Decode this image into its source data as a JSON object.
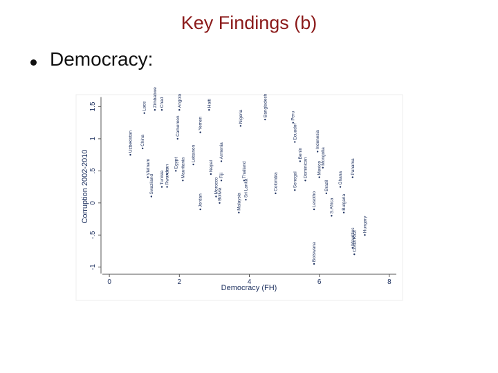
{
  "slide": {
    "title": "Key Findings (b)",
    "bullet": "Democracy:"
  },
  "chart_data": {
    "type": "scatter",
    "x_label": "Democracy (FH)",
    "y_label": "Corruption 2002-2010",
    "xlim": [
      -0.2,
      8.2
    ],
    "xticks": [
      0,
      2,
      4,
      6,
      8
    ],
    "ylim": [
      -1.1,
      1.65
    ],
    "yticks": [
      {
        "value": -1,
        "label": "-1"
      },
      {
        "value": -0.5,
        "label": "-.5"
      },
      0,
      {
        "value": 0.5,
        "label": ".5"
      },
      1,
      1.5
    ],
    "color": "#1f3260",
    "labels": [
      "Uzbekistan",
      "Laos",
      "Zimbabwe",
      "Chad",
      "China",
      "Vietnam",
      "Swaziland",
      "Tunisia",
      "Iran",
      "Rwanda",
      "Mauritania",
      "Cameroon",
      "Angola",
      "Egypt",
      "Jordan",
      "Lebanon",
      "Yemen",
      "Haiti",
      "Nepal",
      "Armenia",
      "Fiji",
      "Morocco",
      "Bolivia",
      "Malaysia",
      "Sri Lanka",
      "Thailand",
      "Nigeria",
      "Bangladesh",
      "Colombia",
      "Senegal",
      "Peru",
      "Ecuador",
      "Benin",
      "Dominican",
      "Lesotho",
      "Botswana",
      "Indonesia",
      "Mongolia",
      "Brazil",
      "Ghana",
      "Bulgaria",
      "Mauritius",
      "Costa Rica",
      "Hungary",
      "Panama",
      "Mexico",
      "S.Africa"
    ],
    "x": [
      0.6,
      1.0,
      1.3,
      1.5,
      0.95,
      1.1,
      1.2,
      1.5,
      1.65,
      1.65,
      2.1,
      1.95,
      2.0,
      1.9,
      2.6,
      2.4,
      2.6,
      2.85,
      2.9,
      3.2,
      3.2,
      3.05,
      3.15,
      3.7,
      3.9,
      3.85,
      3.75,
      4.45,
      4.75,
      5.3,
      5.25,
      5.3,
      5.45,
      5.6,
      5.85,
      5.85,
      5.95,
      6.1,
      6.2,
      6.6,
      6.7,
      6.95,
      7.0,
      7.3,
      6.95,
      6.0,
      6.35
    ],
    "values": [
      0.75,
      1.4,
      1.45,
      1.45,
      0.85,
      0.4,
      0.1,
      0.25,
      0.45,
      0.25,
      0.35,
      1.0,
      1.45,
      0.5,
      -0.1,
      0.6,
      1.1,
      1.45,
      0.45,
      0.65,
      0.35,
      0.1,
      0.0,
      -0.15,
      0.05,
      0.35,
      1.2,
      1.3,
      0.15,
      0.2,
      1.25,
      0.95,
      0.65,
      0.35,
      -0.1,
      -0.95,
      0.8,
      0.55,
      0.15,
      0.25,
      -0.15,
      -0.7,
      -0.8,
      -0.5,
      0.4,
      0.4,
      -0.2
    ]
  }
}
